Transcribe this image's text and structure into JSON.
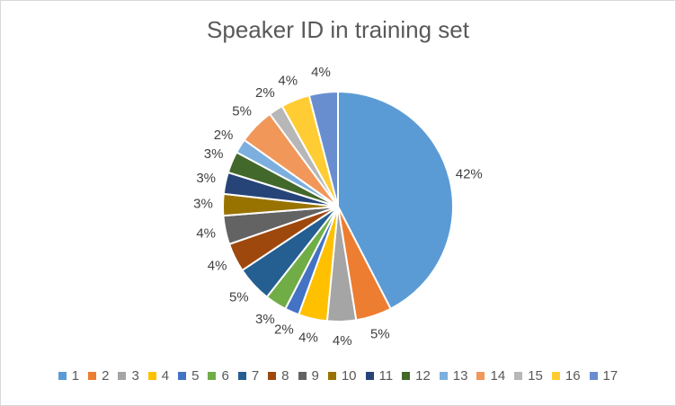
{
  "chart_data": {
    "type": "pie",
    "title": "Speaker ID in training set",
    "categories": [
      "1",
      "2",
      "3",
      "4",
      "5",
      "6",
      "7",
      "8",
      "9",
      "10",
      "11",
      "12",
      "13",
      "14",
      "15",
      "16",
      "17"
    ],
    "values": [
      42,
      5,
      4,
      4,
      2,
      3,
      5,
      4,
      4,
      3,
      3,
      3,
      2,
      5,
      2,
      4,
      4
    ],
    "labels": [
      "42%",
      "5%",
      "4%",
      "4%",
      "2%",
      "3%",
      "5%",
      "4%",
      "4%",
      "3%",
      "3%",
      "3%",
      "2%",
      "5%",
      "2%",
      "4%",
      "4%"
    ],
    "colors": [
      "#5B9BD5",
      "#ED7D31",
      "#A5A5A5",
      "#FFC000",
      "#4472C4",
      "#70AD47",
      "#255E91",
      "#9E480E",
      "#636363",
      "#997300",
      "#264478",
      "#43682B",
      "#7CAFDD",
      "#F1975A",
      "#B7B7B7",
      "#FFCD33",
      "#698ED0"
    ],
    "legend_position": "bottom"
  }
}
